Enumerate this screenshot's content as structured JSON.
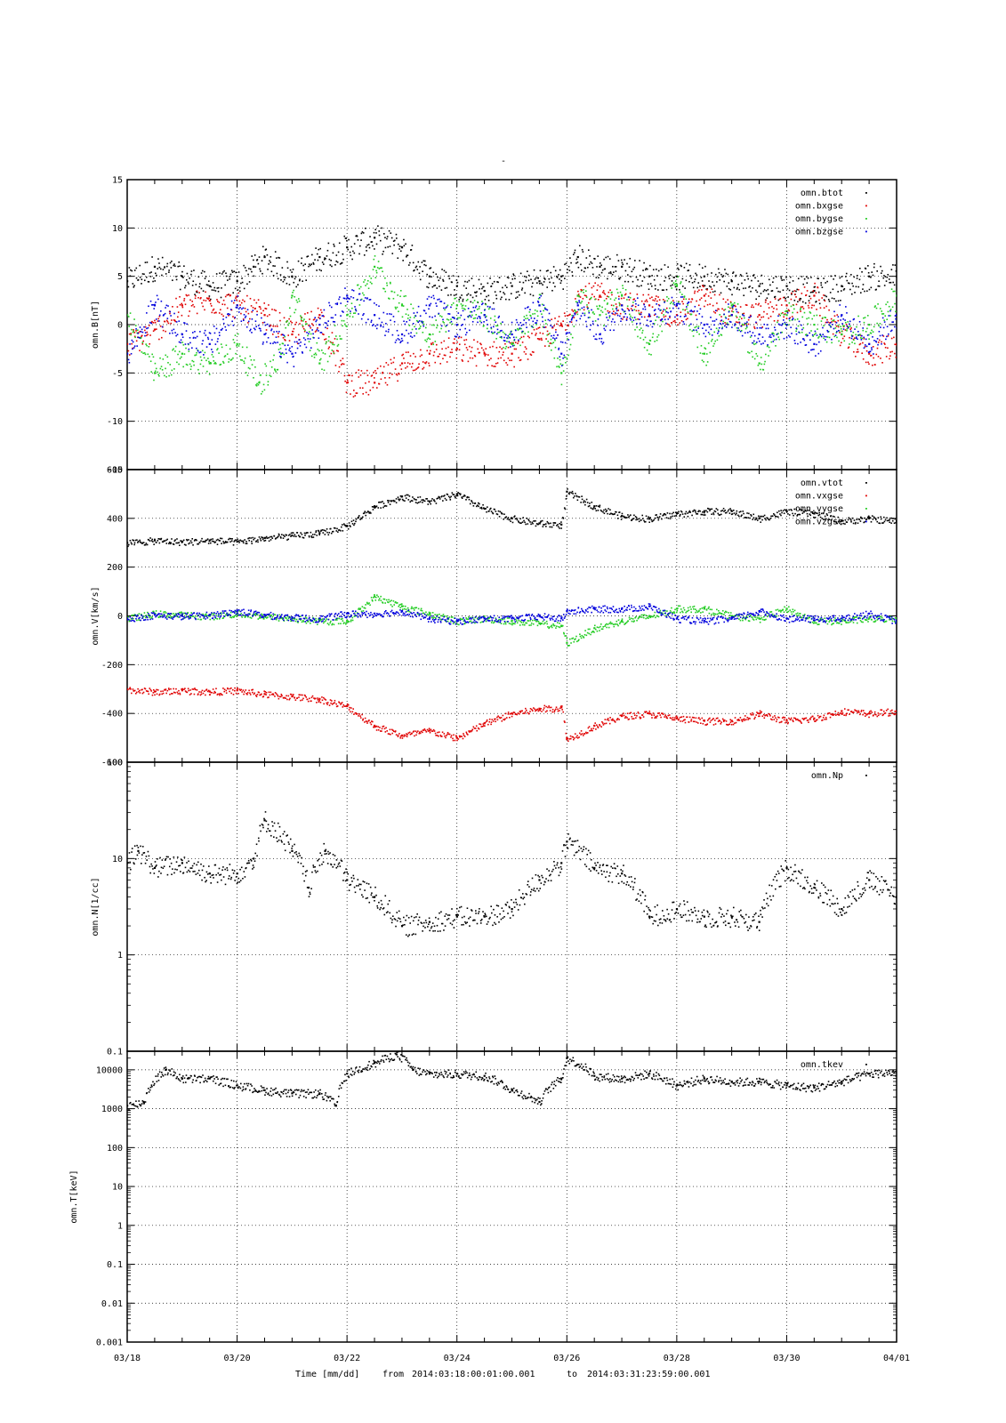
{
  "page_title": "-",
  "footer": {
    "time_label": "Time [mm/dd]",
    "from_word": "from",
    "from_value": "2014:03:18:00:01:00.001",
    "to_word": "to",
    "to_value": "2014:03:31:23:59:00.001"
  },
  "x_axis": {
    "range_days": [
      0,
      14
    ],
    "ticks": [
      {
        "day": 0,
        "label": "03/18"
      },
      {
        "day": 2,
        "label": "03/20"
      },
      {
        "day": 4,
        "label": "03/22"
      },
      {
        "day": 6,
        "label": "03/24"
      },
      {
        "day": 8,
        "label": "03/26"
      },
      {
        "day": 10,
        "label": "03/28"
      },
      {
        "day": 12,
        "label": "03/30"
      },
      {
        "day": 14,
        "label": "04/01"
      }
    ]
  },
  "colors": {
    "black": "#000000",
    "red": "#e00000",
    "green": "#22cc22",
    "blue": "#0000dd"
  },
  "chart_data": [
    {
      "type": "scatter",
      "ylabel": "omn.B[nT]",
      "ylim": [
        -15,
        15
      ],
      "yscale": "linear",
      "yticks": [
        15,
        10,
        5,
        0,
        -5,
        -10,
        -15
      ],
      "ytick_labels": [
        "15",
        "10",
        "5",
        "0",
        "-5",
        "-10",
        "-15"
      ],
      "grid": true,
      "legend": "top-right",
      "series": [
        {
          "name": "omn.btot",
          "color": "#000000",
          "x": [
            0,
            0.5,
            1,
            1.5,
            2,
            2.3,
            2.5,
            3,
            3.5,
            4,
            4.5,
            5,
            5.5,
            6,
            6.5,
            7,
            7.5,
            7.9,
            8.2,
            8.6,
            9,
            9.5,
            10,
            10.5,
            11,
            11.5,
            12,
            12.5,
            13,
            13.5,
            14
          ],
          "y": [
            4.5,
            6,
            5,
            4,
            4.5,
            6,
            7,
            5,
            7,
            8,
            9,
            8,
            5,
            4,
            3.5,
            4,
            4.5,
            5,
            7,
            6,
            6,
            5,
            5,
            5,
            4.5,
            4,
            4,
            3.5,
            4,
            5,
            5
          ]
        },
        {
          "name": "omn.bxgse",
          "color": "#e00000",
          "x": [
            0,
            0.5,
            1,
            1.5,
            2,
            2.5,
            3,
            3.5,
            4,
            4.5,
            5,
            5.5,
            6,
            6.5,
            7,
            7.5,
            7.9,
            8.2,
            8.6,
            9,
            9.5,
            10,
            10.5,
            11,
            11.5,
            12,
            12.5,
            13,
            13.5,
            14
          ],
          "y": [
            -2,
            -0.5,
            2,
            2.5,
            2,
            1,
            -1,
            1,
            -6,
            -6,
            -4,
            -3,
            -2.5,
            -3,
            -3,
            -1.5,
            0,
            3,
            3,
            2,
            2,
            1,
            3,
            1,
            1,
            2,
            3,
            -1,
            -3,
            -2
          ]
        },
        {
          "name": "omn.bygse",
          "color": "#22cc22",
          "x": [
            0,
            0.5,
            1,
            1.5,
            2,
            2.4,
            2.8,
            3,
            3.5,
            4,
            4.5,
            5,
            5.5,
            6,
            6.5,
            7,
            7.5,
            7.9,
            8.2,
            8.6,
            9,
            9.5,
            10,
            10.5,
            11,
            11.5,
            12,
            12.5,
            13,
            13.5,
            14
          ],
          "y": [
            1,
            -5,
            -3,
            -4,
            -2,
            -6,
            -3,
            3,
            -4,
            1,
            6,
            2,
            -1,
            2,
            1,
            -2,
            2,
            -5,
            3,
            1,
            3,
            -2,
            4,
            -3,
            2,
            -4,
            1,
            0,
            -1,
            0,
            3
          ]
        },
        {
          "name": "omn.bzgse",
          "color": "#0000dd",
          "x": [
            0,
            0.5,
            1,
            1.5,
            2,
            2.5,
            3,
            3.5,
            4,
            4.5,
            5,
            5.5,
            6,
            6.5,
            7,
            7.5,
            7.9,
            8.2,
            8.6,
            9,
            9.5,
            10,
            10.5,
            11,
            11.5,
            12,
            12.5,
            13,
            13.5,
            14
          ],
          "y": [
            -3,
            2,
            -1,
            -2,
            2,
            -1,
            -3,
            0,
            3,
            1,
            -1,
            2,
            0,
            1,
            -1,
            2,
            -3,
            2,
            -1,
            2,
            1,
            2,
            0,
            1,
            -1,
            0,
            -2,
            1,
            -2,
            1
          ]
        }
      ]
    },
    {
      "type": "scatter",
      "ylabel": "omn.V[km/s]",
      "ylim": [
        -600,
        600
      ],
      "yscale": "linear",
      "yticks": [
        600,
        400,
        200,
        0,
        -200,
        -400,
        -600
      ],
      "ytick_labels": [
        "600",
        "400",
        "200",
        "0",
        "-200",
        "-400",
        "-600"
      ],
      "grid": true,
      "legend": "top-right",
      "series": [
        {
          "name": "omn.vtot",
          "color": "#000000",
          "x": [
            0,
            0.5,
            1,
            1.5,
            2,
            2.5,
            3,
            3.5,
            4,
            4.5,
            5,
            5.5,
            6,
            6.5,
            7,
            7.5,
            7.9,
            8,
            8.5,
            9,
            9.5,
            10,
            10.5,
            11,
            11.5,
            12,
            12.5,
            13,
            13.5,
            14
          ],
          "y": [
            300,
            310,
            305,
            310,
            305,
            320,
            330,
            340,
            370,
            450,
            490,
            470,
            500,
            440,
            400,
            380,
            375,
            510,
            450,
            410,
            400,
            420,
            430,
            430,
            400,
            430,
            420,
            390,
            400,
            390
          ]
        },
        {
          "name": "omn.vxgse",
          "color": "#e00000",
          "x": [
            0,
            0.5,
            1,
            1.5,
            2,
            2.5,
            3,
            3.5,
            4,
            4.5,
            5,
            5.5,
            6,
            6.5,
            7,
            7.5,
            7.9,
            8,
            8.5,
            9,
            9.5,
            10,
            10.5,
            11,
            11.5,
            12,
            12.5,
            13,
            13.5,
            14
          ],
          "y": [
            -300,
            -310,
            -305,
            -310,
            -305,
            -320,
            -330,
            -340,
            -370,
            -450,
            -490,
            -470,
            -500,
            -440,
            -400,
            -380,
            -375,
            -505,
            -450,
            -410,
            -400,
            -420,
            -430,
            -430,
            -400,
            -430,
            -420,
            -390,
            -400,
            -390
          ]
        },
        {
          "name": "omn.vygse",
          "color": "#22cc22",
          "x": [
            0,
            0.5,
            1,
            1.5,
            2,
            2.5,
            3,
            3.5,
            4,
            4.5,
            5,
            5.5,
            6,
            6.5,
            7,
            7.5,
            7.9,
            8,
            8.5,
            9,
            9.5,
            10,
            10.5,
            11,
            11.5,
            12,
            12.5,
            13,
            13.5,
            14
          ],
          "y": [
            -10,
            10,
            5,
            0,
            10,
            0,
            -10,
            -20,
            -20,
            80,
            40,
            10,
            -20,
            -10,
            -20,
            -30,
            -40,
            -110,
            -50,
            -20,
            0,
            30,
            30,
            0,
            -10,
            30,
            -20,
            -20,
            -10,
            -10
          ]
        },
        {
          "name": "omn.vzgse",
          "color": "#0000dd",
          "x": [
            0,
            0.5,
            1,
            1.5,
            2,
            2.5,
            3,
            3.5,
            4,
            4.5,
            5,
            5.5,
            6,
            6.5,
            7,
            7.5,
            7.9,
            8,
            8.5,
            9,
            9.5,
            10,
            10.5,
            11,
            11.5,
            12,
            12.5,
            13,
            13.5,
            14
          ],
          "y": [
            -10,
            5,
            0,
            5,
            20,
            5,
            -5,
            -10,
            10,
            10,
            20,
            -10,
            -20,
            -10,
            -10,
            0,
            -10,
            20,
            30,
            30,
            40,
            -10,
            -20,
            -10,
            20,
            -10,
            -10,
            -10,
            10,
            -20
          ]
        }
      ]
    },
    {
      "type": "scatter",
      "ylabel": "omn.N[1/cc]",
      "ylim": [
        0.1,
        100
      ],
      "yscale": "log",
      "yticks": [
        100,
        10,
        1,
        0.1
      ],
      "ytick_labels": [
        "100",
        "10",
        "1",
        "0.1"
      ],
      "grid": true,
      "legend": "top-right",
      "series": [
        {
          "name": "omn.Np",
          "color": "#000000",
          "x": [
            0,
            0.2,
            0.5,
            1,
            1.5,
            2,
            2.3,
            2.5,
            3,
            3.3,
            3.6,
            4,
            4.5,
            5,
            5.5,
            6,
            6.5,
            7,
            7.5,
            7.9,
            8,
            8.5,
            9,
            9.5,
            10,
            10.5,
            11,
            11.5,
            12,
            12.5,
            13,
            13.5,
            14
          ],
          "y": [
            9,
            12,
            8,
            9,
            7,
            7,
            10,
            25,
            12,
            5,
            12,
            6,
            4,
            2,
            2.2,
            2.5,
            2.5,
            3,
            6,
            9,
            15,
            8,
            7,
            2.5,
            3,
            2.5,
            2.5,
            2.2,
            8,
            5,
            3,
            6,
            4
          ]
        }
      ]
    },
    {
      "type": "scatter",
      "ylabel": "omn.T[keV]",
      "ylim": [
        0.001,
        30000
      ],
      "yscale": "log",
      "yticks": [
        10000,
        1000,
        100,
        10,
        1,
        0.1,
        0.01,
        0.001
      ],
      "ytick_labels": [
        "10000",
        "1000",
        "100",
        "10",
        "1",
        "0.1",
        "0.01",
        "0.001"
      ],
      "grid": true,
      "legend": "top-right",
      "series": [
        {
          "name": "omn.tkev",
          "color": "#000000",
          "x": [
            0,
            0.3,
            0.7,
            1,
            1.5,
            2,
            2.5,
            3,
            3.5,
            3.8,
            4,
            4.5,
            4.9,
            5.2,
            5.5,
            6,
            6.5,
            7,
            7.5,
            7.9,
            8,
            8.5,
            9,
            9.5,
            10,
            10.5,
            11,
            11.5,
            12,
            12.5,
            13,
            13.5,
            14
          ],
          "y": [
            1200,
            1500,
            10000,
            6000,
            6000,
            4000,
            3000,
            2500,
            2500,
            1200,
            8000,
            15000,
            25000,
            10000,
            8000,
            8000,
            7000,
            3000,
            1500,
            6000,
            20000,
            7000,
            6000,
            8000,
            4000,
            6000,
            5000,
            5000,
            4000,
            3500,
            5000,
            8000,
            9000
          ]
        }
      ]
    }
  ]
}
